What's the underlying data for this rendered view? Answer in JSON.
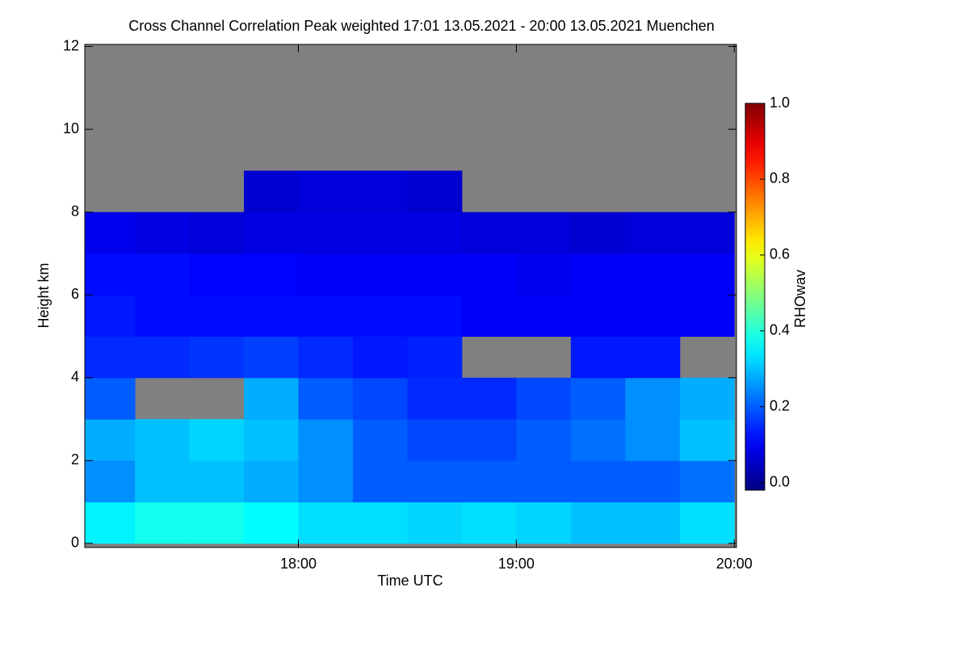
{
  "chart_data": {
    "type": "heatmap",
    "title": "Cross Channel Correlation Peak weighted   17:01 13.05.2021 - 20:00 13.05.2021 Muenchen",
    "x_label": "Time UTC",
    "y_label": "Height km",
    "colorbar_label": "RHOwav",
    "colormap": "jet",
    "missing_color": "#808080",
    "xlim": [
      17.02,
      20.01
    ],
    "xticks": [
      {
        "value": 18,
        "label": "18:00"
      },
      {
        "value": 19,
        "label": "19:00"
      },
      {
        "value": 20,
        "label": "20:00"
      }
    ],
    "ylim": [
      -0.1,
      12.05
    ],
    "yticks": [
      0,
      2,
      4,
      6,
      8,
      10,
      12
    ],
    "clim": [
      -0.02,
      1.0
    ],
    "cticks": [
      {
        "value": 0,
        "label": "0.0"
      },
      {
        "value": 0.2,
        "label": "0.2"
      },
      {
        "value": 0.4,
        "label": "0.4"
      },
      {
        "value": 0.6,
        "label": "0.6"
      },
      {
        "value": 0.8,
        "label": "0.8"
      },
      {
        "value": 1,
        "label": "1.0"
      }
    ],
    "x_bins": [
      17.0,
      17.25,
      17.5,
      17.75,
      18.0,
      18.25,
      18.5,
      18.75,
      19.0,
      19.25,
      19.5,
      19.75,
      20.0
    ],
    "y_bins": [
      0,
      1,
      2,
      3,
      4,
      5,
      6,
      7,
      8,
      9,
      10,
      11,
      12
    ],
    "z": [
      [
        0.35,
        0.38,
        0.38,
        0.36,
        0.33,
        0.33,
        0.32,
        0.33,
        0.32,
        0.3,
        0.3,
        0.33
      ],
      [
        0.25,
        0.3,
        0.3,
        0.28,
        0.25,
        0.2,
        0.2,
        0.2,
        0.2,
        0.2,
        0.2,
        0.22
      ],
      [
        0.28,
        0.3,
        0.32,
        0.3,
        0.25,
        0.2,
        0.18,
        0.18,
        0.2,
        0.22,
        0.25,
        0.3
      ],
      [
        0.2,
        null,
        null,
        0.28,
        0.2,
        0.18,
        0.15,
        0.15,
        0.18,
        0.2,
        0.25,
        0.28
      ],
      [
        0.15,
        0.15,
        0.16,
        0.17,
        0.15,
        0.13,
        0.14,
        null,
        null,
        0.13,
        0.13,
        null
      ],
      [
        0.13,
        0.12,
        0.12,
        0.12,
        0.12,
        0.12,
        0.12,
        0.1,
        0.1,
        0.1,
        0.1,
        0.1
      ],
      [
        0.12,
        0.12,
        0.11,
        0.11,
        0.1,
        0.1,
        0.1,
        0.1,
        0.09,
        0.1,
        0.1,
        0.1
      ],
      [
        0.09,
        0.08,
        0.07,
        0.08,
        0.08,
        0.08,
        0.08,
        0.07,
        0.07,
        0.06,
        0.07,
        0.07
      ],
      [
        null,
        null,
        null,
        0.06,
        0.07,
        0.07,
        0.06,
        null,
        null,
        null,
        null,
        null
      ],
      [
        null,
        null,
        null,
        null,
        null,
        null,
        null,
        null,
        null,
        null,
        null,
        null
      ],
      [
        null,
        null,
        null,
        null,
        null,
        null,
        null,
        null,
        null,
        null,
        null,
        null
      ],
      [
        null,
        null,
        null,
        null,
        null,
        null,
        null,
        null,
        null,
        null,
        null,
        null
      ]
    ]
  }
}
